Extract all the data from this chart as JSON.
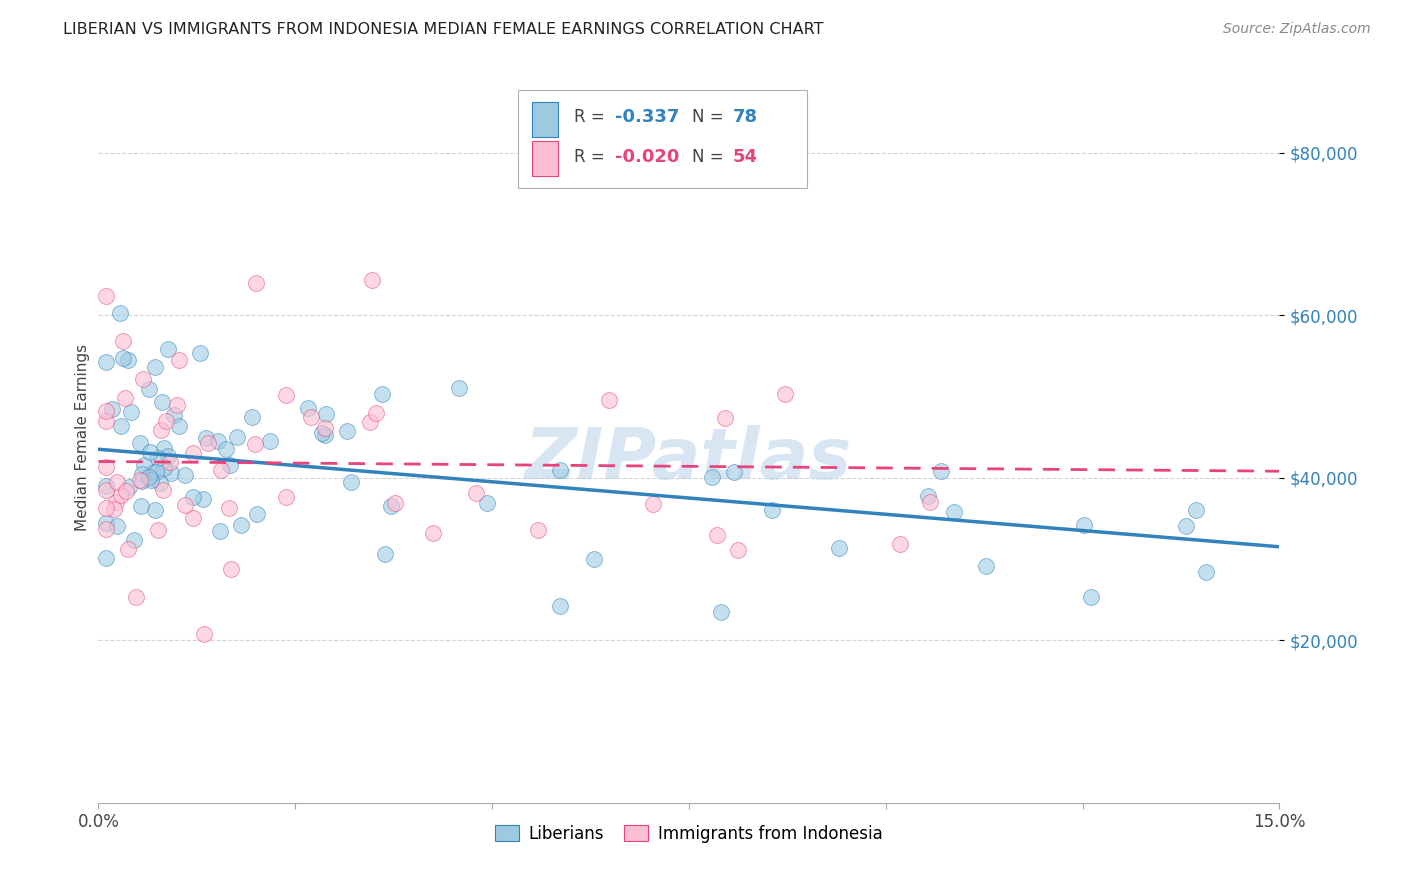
{
  "title": "LIBERIAN VS IMMIGRANTS FROM INDONESIA MEDIAN FEMALE EARNINGS CORRELATION CHART",
  "source": "Source: ZipAtlas.com",
  "ylabel": "Median Female Earnings",
  "xlim": [
    0.0,
    0.15
  ],
  "ylim": [
    0,
    90000
  ],
  "yticks": [
    20000,
    40000,
    60000,
    80000
  ],
  "ytick_labels": [
    "$20,000",
    "$40,000",
    "$60,000",
    "$80,000"
  ],
  "xtick_positions": [
    0.0,
    0.025,
    0.05,
    0.075,
    0.1,
    0.125,
    0.15
  ],
  "xtick_labels": [
    "0.0%",
    "",
    "",
    "",
    "",
    "",
    "15.0%"
  ],
  "legend_label1": "Liberians",
  "legend_label2": "Immigrants from Indonesia",
  "r1": "-0.337",
  "n1": "78",
  "r2": "-0.020",
  "n2": "54",
  "color1": "#9ecae1",
  "color2": "#fcbfd2",
  "line1_color": "#3182bd",
  "line2_color": "#e8437a",
  "watermark": "ZIPatlas",
  "background_color": "#ffffff",
  "grid_color": "#d0d0d0",
  "blue_intercept": 43500,
  "blue_slope": -80000,
  "pink_intercept": 42000,
  "pink_slope": -8000,
  "title_fontsize": 11.5,
  "source_fontsize": 10,
  "ytick_fontsize": 12,
  "xtick_fontsize": 12,
  "ylabel_fontsize": 11,
  "watermark_fontsize": 52
}
